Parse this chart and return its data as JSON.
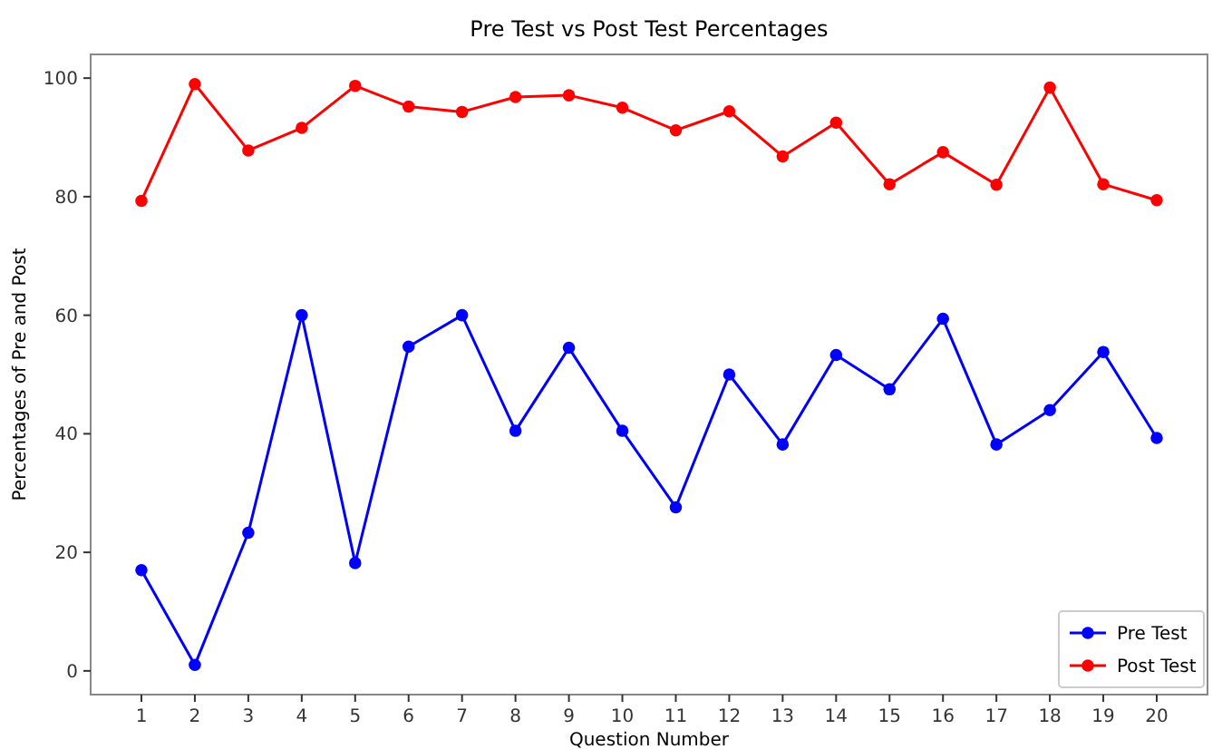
{
  "chart_data": {
    "type": "line",
    "title": "Pre Test vs Post Test Percentages",
    "xlabel": "Question Number",
    "ylabel": "Percentages of Pre and Post",
    "x": [
      1,
      2,
      3,
      4,
      5,
      6,
      7,
      8,
      9,
      10,
      11,
      12,
      13,
      14,
      15,
      16,
      17,
      18,
      19,
      20
    ],
    "series": [
      {
        "name": "Pre Test",
        "color": "#0000ff",
        "values": [
          17,
          1,
          23.3,
          60,
          18.2,
          54.7,
          60,
          40.5,
          54.5,
          40.5,
          27.6,
          50,
          38.2,
          53.3,
          47.5,
          59.4,
          38.2,
          44,
          53.8,
          39.3
        ]
      },
      {
        "name": "Post Test",
        "color": "#ff0000",
        "values": [
          79.3,
          99,
          87.8,
          91.6,
          98.7,
          95.2,
          94.3,
          96.8,
          97.1,
          95,
          91.2,
          94.4,
          86.8,
          92.5,
          82.1,
          87.5,
          82,
          98.4,
          82.1,
          79.4
        ]
      }
    ],
    "xlim": [
      0.05,
      20.95
    ],
    "xticks": [
      1,
      2,
      3,
      4,
      5,
      6,
      7,
      8,
      9,
      10,
      11,
      12,
      13,
      14,
      15,
      16,
      17,
      18,
      19,
      20
    ],
    "ylim": [
      -4,
      104
    ],
    "yticks": [
      0,
      20,
      40,
      60,
      80,
      100
    ],
    "marker": "circle",
    "legend": "bottom right",
    "grid": false
  }
}
